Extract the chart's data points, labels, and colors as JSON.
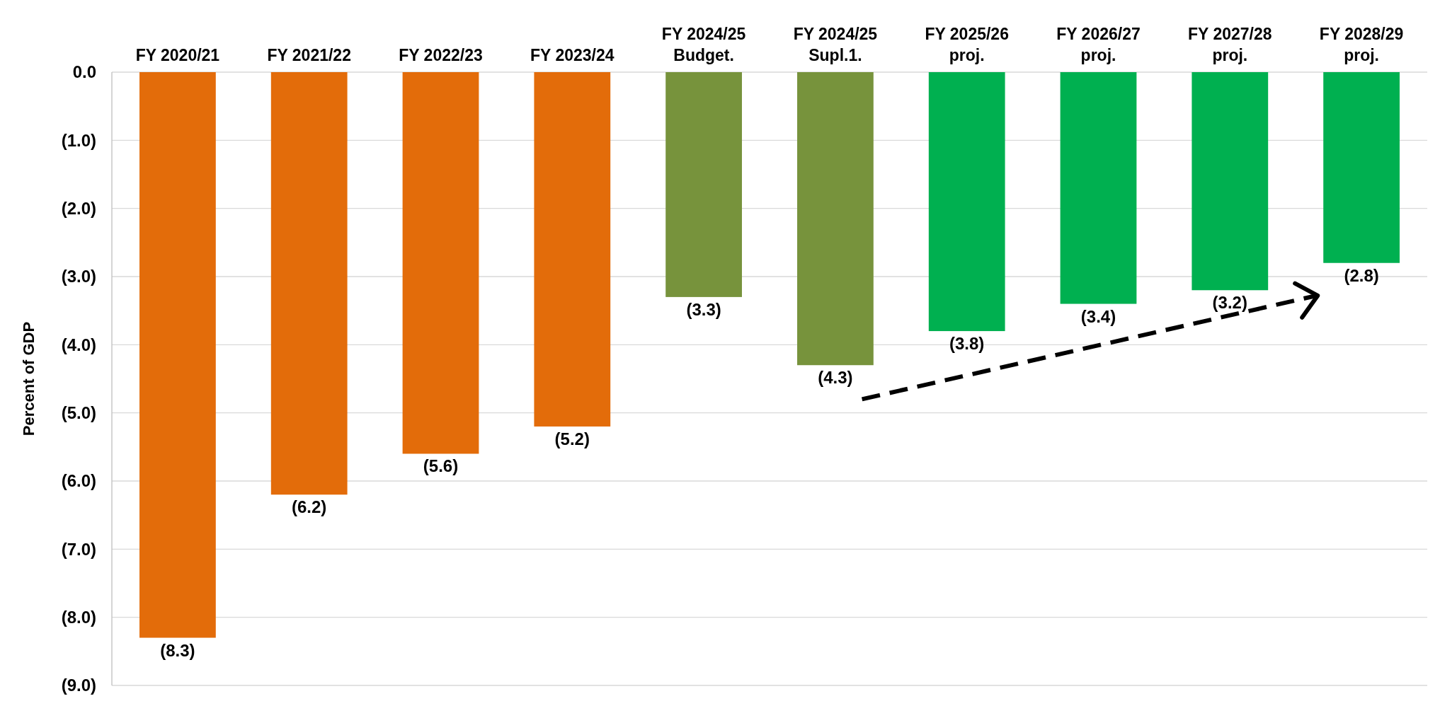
{
  "chart_data": {
    "type": "bar",
    "categories": [
      "FY 2020/21",
      "FY 2021/22",
      "FY 2022/23",
      "FY 2023/24",
      "FY 2024/25\nBudget.",
      "FY 2024/25\nSupl.1.",
      "FY 2025/26\nproj.",
      "FY 2026/27\nproj.",
      "FY 2027/28\nproj.",
      "FY 2028/29\nproj."
    ],
    "values": [
      -8.3,
      -6.2,
      -5.6,
      -5.2,
      -3.3,
      -4.3,
      -3.8,
      -3.4,
      -3.2,
      -2.8
    ],
    "colors": [
      "#e36c0a",
      "#e36c0a",
      "#e36c0a",
      "#e36c0a",
      "#77933c",
      "#77933c",
      "#00b050",
      "#00b050",
      "#00b050",
      "#00b050"
    ],
    "value_labels": [
      "(8.3)",
      "(6.2)",
      "(5.6)",
      "(5.2)",
      "(3.3)",
      "(4.3)",
      "(3.8)",
      "(3.4)",
      "(3.2)",
      "(2.8)"
    ],
    "ylabel": "Percent of GDP",
    "ylim": [
      -9,
      0
    ],
    "yticks": [
      {
        "value": 0,
        "label": "0.0"
      },
      {
        "value": -1,
        "label": "(1.0)"
      },
      {
        "value": -2,
        "label": "(2.0)"
      },
      {
        "value": -3,
        "label": "(3.0)"
      },
      {
        "value": -4,
        "label": "(4.0)"
      },
      {
        "value": -5,
        "label": "(5.0)"
      },
      {
        "value": -6,
        "label": "(6.0)"
      },
      {
        "value": -7,
        "label": "(7.0)"
      },
      {
        "value": -8,
        "label": "(8.0)"
      },
      {
        "value": -9,
        "label": "(9.0)"
      }
    ],
    "grid": "y"
  }
}
